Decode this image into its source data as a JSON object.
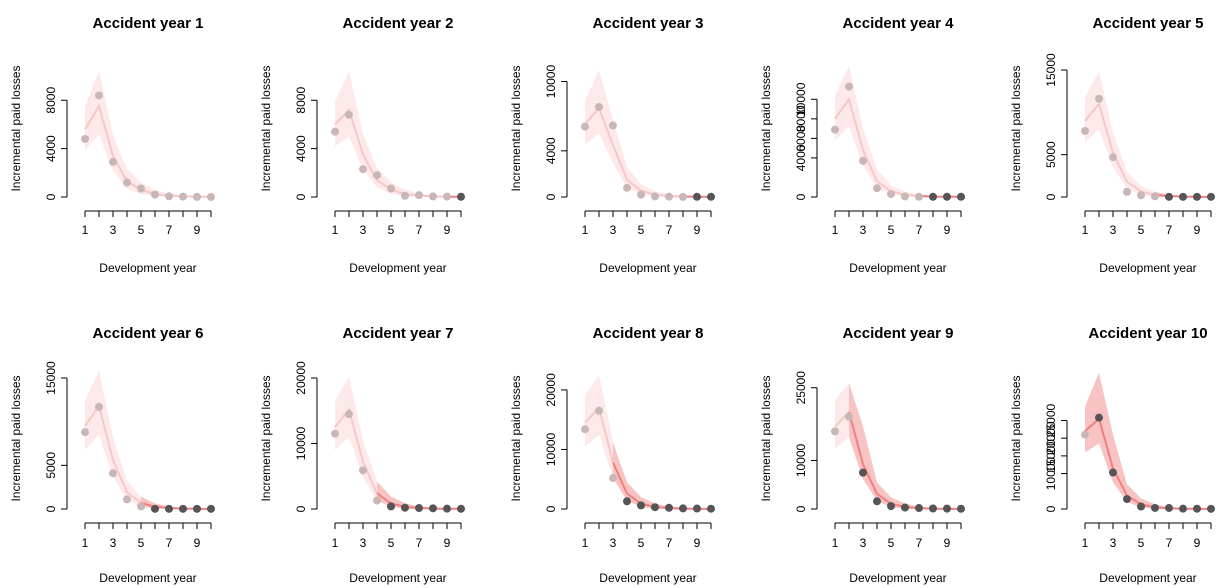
{
  "figure": {
    "xlabel": "Development year",
    "ylabel": "Incremental paid losses"
  },
  "colors": {
    "band_past": "#fde9e9",
    "band_future": "#f6b9b9",
    "line_past": "#f6c7c7",
    "line_future": "#f08080",
    "point_observed": "#c9b7b7",
    "point_holdout": "#555555"
  },
  "chart_data": [
    {
      "type": "scatter",
      "title": "Accident year 1",
      "ylim": [
        0,
        10500
      ],
      "yticks": [
        0,
        4000,
        8000
      ],
      "x": [
        1,
        2,
        3,
        4,
        5,
        6,
        7,
        8,
        9,
        10
      ],
      "xticks": [
        1,
        3,
        5,
        7,
        9
      ],
      "observed": [
        4800,
        8400,
        2900,
        1200,
        700,
        200,
        60,
        30,
        10,
        0
      ],
      "holdout": [],
      "fit_mean": [
        5600,
        7500,
        3400,
        1300,
        600,
        250,
        100,
        50,
        20,
        10
      ],
      "band_lower": [
        3900,
        5200,
        2200,
        700,
        250,
        60,
        10,
        0,
        0,
        0
      ],
      "band_upper": [
        7500,
        10400,
        5100,
        2300,
        1200,
        600,
        280,
        160,
        90,
        60
      ],
      "split_index": 10
    },
    {
      "type": "scatter",
      "title": "Accident year 2",
      "ylim": [
        0,
        10500
      ],
      "yticks": [
        0,
        4000,
        8000
      ],
      "x": [
        1,
        2,
        3,
        4,
        5,
        6,
        7,
        8,
        9,
        10
      ],
      "xticks": [
        1,
        3,
        5,
        7,
        9
      ],
      "observed": [
        5400,
        6800,
        2300,
        1800,
        700,
        100,
        150,
        50,
        30
      ],
      "holdout": [
        [
          10,
          20
        ]
      ],
      "fit_mean": [
        6000,
        7200,
        3500,
        1400,
        600,
        250,
        100,
        50,
        25,
        10
      ],
      "band_lower": [
        4200,
        5000,
        2300,
        800,
        250,
        60,
        10,
        0,
        0,
        0
      ],
      "band_upper": [
        7900,
        10400,
        5200,
        2400,
        1200,
        600,
        280,
        160,
        90,
        60
      ],
      "split_index": 9
    },
    {
      "type": "scatter",
      "title": "Accident year 3",
      "ylim": [
        0,
        11000
      ],
      "yticks": [
        0,
        4000,
        10000
      ],
      "x": [
        1,
        2,
        3,
        4,
        5,
        6,
        7,
        8,
        9,
        10
      ],
      "xticks": [
        1,
        3,
        5,
        7,
        9
      ],
      "observed": [
        6100,
        7800,
        6200,
        800,
        200,
        50,
        30,
        10
      ],
      "holdout": [
        [
          9,
          20
        ],
        [
          10,
          20
        ]
      ],
      "fit_mean": [
        6300,
        7700,
        4500,
        1500,
        550,
        200,
        80,
        40,
        20,
        10
      ],
      "band_lower": [
        4500,
        5500,
        2900,
        800,
        200,
        40,
        0,
        0,
        0,
        0
      ],
      "band_upper": [
        8300,
        11000,
        6700,
        2600,
        1100,
        500,
        240,
        140,
        80,
        50
      ],
      "split_index": 8
    },
    {
      "type": "scatter",
      "title": "Accident year 4",
      "ylim": [
        0,
        13000
      ],
      "yticks": [
        0,
        4000,
        6000,
        8000,
        10000
      ],
      "x": [
        1,
        2,
        3,
        4,
        5,
        6,
        7,
        8,
        9,
        10
      ],
      "xticks": [
        1,
        3,
        5,
        7,
        9
      ],
      "observed": [
        6900,
        11300,
        3700,
        900,
        300,
        60,
        20
      ],
      "holdout": [
        [
          8,
          20
        ],
        [
          9,
          20
        ],
        [
          10,
          20
        ]
      ],
      "fit_mean": [
        8000,
        10000,
        4800,
        1600,
        600,
        220,
        90,
        40,
        20,
        10
      ],
      "band_lower": [
        5800,
        7200,
        3200,
        900,
        220,
        50,
        0,
        0,
        0,
        0
      ],
      "band_upper": [
        10400,
        13400,
        7000,
        2800,
        1200,
        550,
        260,
        150,
        80,
        50
      ],
      "split_index": 7
    },
    {
      "type": "scatter",
      "title": "Accident year 5",
      "ylim": [
        0,
        15000
      ],
      "yticks": [
        0,
        5000,
        15000
      ],
      "x": [
        1,
        2,
        3,
        4,
        5,
        6,
        7,
        8,
        9,
        10
      ],
      "xticks": [
        1,
        3,
        5,
        7,
        9
      ],
      "observed": [
        7800,
        11600,
        4700,
        600,
        200,
        80
      ],
      "holdout": [
        [
          7,
          20
        ],
        [
          8,
          20
        ],
        [
          9,
          20
        ],
        [
          10,
          20
        ]
      ],
      "fit_mean": [
        9000,
        11000,
        5200,
        1800,
        650,
        240,
        100,
        45,
        20,
        10
      ],
      "band_lower": [
        6500,
        8000,
        3500,
        1000,
        250,
        60,
        0,
        0,
        0,
        0
      ],
      "band_upper": [
        11800,
        14800,
        7600,
        3000,
        1300,
        600,
        280,
        160,
        90,
        50
      ],
      "split_index": 6
    },
    {
      "type": "scatter",
      "title": "Accident year 6",
      "ylim": [
        0,
        15000
      ],
      "yticks": [
        0,
        5000,
        15000
      ],
      "x": [
        1,
        2,
        3,
        4,
        5,
        6,
        7,
        8,
        9,
        10
      ],
      "xticks": [
        1,
        3,
        5,
        7,
        9
      ],
      "observed": [
        8800,
        11700,
        4100,
        1100,
        300
      ],
      "holdout": [
        [
          6,
          20
        ],
        [
          7,
          20
        ],
        [
          8,
          20
        ],
        [
          9,
          20
        ],
        [
          10,
          20
        ]
      ],
      "fit_mean": [
        9500,
        11800,
        5600,
        1900,
        700,
        260,
        100,
        45,
        20,
        10
      ],
      "band_lower": [
        6800,
        8500,
        3700,
        1000,
        260,
        60,
        0,
        0,
        0,
        0
      ],
      "band_upper": [
        12400,
        15800,
        8200,
        3200,
        1400,
        650,
        300,
        170,
        90,
        50
      ],
      "split_index": 5
    },
    {
      "type": "scatter",
      "title": "Accident year 7",
      "ylim": [
        0,
        20000
      ],
      "yticks": [
        0,
        10000,
        20000
      ],
      "x": [
        1,
        2,
        3,
        4,
        5,
        6,
        7,
        8,
        9,
        10
      ],
      "xticks": [
        1,
        3,
        5,
        7,
        9
      ],
      "observed": [
        11500,
        14500,
        5900,
        1300
      ],
      "holdout": [
        [
          5,
          400
        ],
        [
          6,
          200
        ],
        [
          7,
          150
        ],
        [
          8,
          100
        ],
        [
          9,
          50
        ],
        [
          10,
          30
        ]
      ],
      "fit_mean": [
        12500,
        15200,
        7200,
        2400,
        850,
        320,
        130,
        60,
        30,
        15
      ],
      "band_lower": [
        9000,
        11000,
        4800,
        1300,
        300,
        60,
        0,
        0,
        0,
        0
      ],
      "band_upper": [
        16500,
        20200,
        10500,
        4200,
        1900,
        900,
        400,
        220,
        120,
        70
      ],
      "split_index": 4
    },
    {
      "type": "scatter",
      "title": "Accident year 8",
      "ylim": [
        0,
        22000
      ],
      "yticks": [
        0,
        10000,
        20000
      ],
      "x": [
        1,
        2,
        3,
        4,
        5,
        6,
        7,
        8,
        9,
        10
      ],
      "xticks": [
        1,
        3,
        5,
        7,
        9
      ],
      "observed": [
        13400,
        16500,
        5200
      ],
      "holdout": [
        [
          4,
          1300
        ],
        [
          5,
          600
        ],
        [
          6,
          300
        ],
        [
          7,
          200
        ],
        [
          8,
          100
        ],
        [
          9,
          80
        ],
        [
          10,
          50
        ]
      ],
      "fit_mean": [
        14500,
        17000,
        7800,
        2600,
        900,
        340,
        140,
        60,
        30,
        15
      ],
      "band_lower": [
        10500,
        12500,
        5200,
        1400,
        300,
        60,
        0,
        0,
        0,
        0
      ],
      "band_upper": [
        19000,
        22500,
        11200,
        4500,
        2000,
        950,
        420,
        230,
        130,
        70
      ],
      "split_index": 3
    },
    {
      "type": "scatter",
      "title": "Accident year 9",
      "ylim": [
        0,
        27000
      ],
      "yticks": [
        0,
        10000,
        25000
      ],
      "x": [
        1,
        2,
        3,
        4,
        5,
        6,
        7,
        8,
        9,
        10
      ],
      "xticks": [
        1,
        3,
        5,
        7,
        9
      ],
      "observed": [
        16000,
        19000
      ],
      "holdout": [
        [
          3,
          7500
        ],
        [
          4,
          1600
        ],
        [
          5,
          600
        ],
        [
          6,
          300
        ],
        [
          7,
          200
        ],
        [
          8,
          100
        ],
        [
          9,
          80
        ],
        [
          10,
          50
        ]
      ],
      "fit_mean": [
        17000,
        20000,
        9200,
        3100,
        1100,
        400,
        160,
        70,
        35,
        15
      ],
      "band_lower": [
        12500,
        14800,
        6100,
        1700,
        350,
        70,
        0,
        0,
        0,
        0
      ],
      "band_upper": [
        22500,
        26000,
        17000,
        5500,
        2400,
        1100,
        500,
        270,
        150,
        80
      ],
      "split_index": 2
    },
    {
      "type": "scatter",
      "title": "Accident year 10",
      "ylim": [
        0,
        37000
      ],
      "yticks": [
        0,
        10000,
        15000,
        20000,
        25000
      ],
      "x": [
        1,
        2,
        3,
        4,
        5,
        6,
        7,
        8,
        9,
        10
      ],
      "xticks": [
        1,
        3,
        5,
        7,
        9
      ],
      "observed": [
        21000
      ],
      "holdout": [
        [
          2,
          25800
        ],
        [
          3,
          10300
        ],
        [
          4,
          2800
        ],
        [
          5,
          700
        ],
        [
          6,
          300
        ],
        [
          7,
          300
        ],
        [
          8,
          100
        ],
        [
          9,
          80
        ],
        [
          10,
          50
        ]
      ],
      "fit_mean": [
        22000,
        25500,
        11500,
        3800,
        1300,
        480,
        190,
        80,
        40,
        20
      ],
      "band_lower": [
        16000,
        18500,
        7500,
        2000,
        400,
        80,
        0,
        0,
        0,
        0
      ],
      "band_upper": [
        29000,
        38500,
        21000,
        7000,
        3000,
        1300,
        600,
        320,
        170,
        90
      ],
      "split_index": 1
    }
  ]
}
